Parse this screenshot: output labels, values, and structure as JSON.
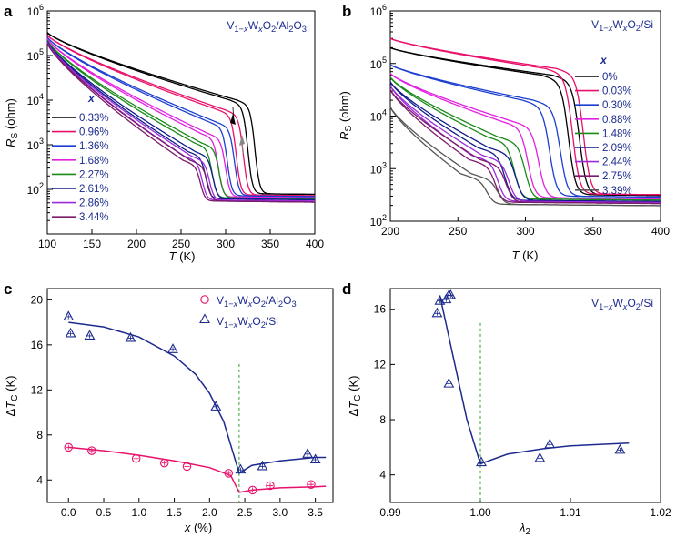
{
  "panels": {
    "a": {
      "letter": "a",
      "title": "V1−xWxO2/Al2O3"
    },
    "b": {
      "letter": "b",
      "title": "V1−xWxO2/Si"
    },
    "c": {
      "letter": "c"
    },
    "d": {
      "letter": "d",
      "title": "V1−xWxO2/Si"
    }
  },
  "chart_data": [
    {
      "id": "a",
      "type": "line",
      "title": "V1−xWxO2/Al2O3",
      "xlabel": "T (K)",
      "ylabel": "RS (ohm)",
      "xlim": [
        100,
        400
      ],
      "ylim": [
        10,
        1000000
      ],
      "yscale": "log",
      "xticks": [
        100,
        150,
        200,
        250,
        300,
        350,
        400
      ],
      "yticks": [
        "10^2",
        "10^3",
        "10^4",
        "10^5",
        "10^6"
      ],
      "legend_title": "x",
      "legend_location": "left-middle",
      "annotations": [
        "arrow down on heating branch near 315 K",
        "arrow up on cooling branch near 335 K"
      ],
      "series": [
        {
          "name": "0.33%",
          "color": "#000000",
          "Tc": 325,
          "start": 330000,
          "knee": 10000,
          "end": 80
        },
        {
          "name": "0.96%",
          "color": "#e8106a",
          "Tc": 312,
          "start": 290000,
          "knee": 6000,
          "end": 75
        },
        {
          "name": "1.36%",
          "color": "#1c3fd0",
          "Tc": 302,
          "start": 260000,
          "knee": 3200,
          "end": 72
        },
        {
          "name": "1.68%",
          "color": "#e21fe0",
          "Tc": 292,
          "start": 240000,
          "knee": 1800,
          "end": 68
        },
        {
          "name": "2.27%",
          "color": "#1a8a1a",
          "Tc": 285,
          "start": 220000,
          "knee": 1100,
          "end": 65
        },
        {
          "name": "2.61%",
          "color": "#101c8a",
          "Tc": 278,
          "start": 210000,
          "knee": 700,
          "end": 62
        },
        {
          "name": "2.86%",
          "color": "#9b2bd9",
          "Tc": 274,
          "start": 200000,
          "knee": 550,
          "end": 58
        },
        {
          "name": "3.44%",
          "color": "#7a1a6a",
          "Tc": 272,
          "start": 190000,
          "knee": 450,
          "end": 55
        }
      ]
    },
    {
      "id": "b",
      "type": "line",
      "title": "V1−xWxO2/Si",
      "xlabel": "T (K)",
      "ylabel": "RS (ohm)",
      "xlim": [
        200,
        400
      ],
      "ylim": [
        100,
        1000000
      ],
      "yscale": "log",
      "xticks": [
        200,
        250,
        300,
        350,
        400
      ],
      "yticks": [
        "10^2",
        "10^3",
        "10^4",
        "10^5",
        "10^6"
      ],
      "legend_title": "x",
      "legend_location": "right",
      "series": [
        {
          "name": "0%",
          "color": "#000000",
          "Tc": 332,
          "start": 200000,
          "knee": 60000,
          "end": 320
        },
        {
          "name": "0.03%",
          "color": "#e8106a",
          "Tc": 335,
          "start": 300000,
          "knee": 80000,
          "end": 330
        },
        {
          "name": "0.30%",
          "color": "#1c3fd0",
          "Tc": 318,
          "start": 95000,
          "knee": 20000,
          "end": 300
        },
        {
          "name": "0.88%",
          "color": "#e21fe0",
          "Tc": 302,
          "start": 65000,
          "knee": 8000,
          "end": 280
        },
        {
          "name": "1.48%",
          "color": "#1a8a1a",
          "Tc": 292,
          "start": 55000,
          "knee": 4000,
          "end": 265
        },
        {
          "name": "2.09%",
          "color": "#101c8a",
          "Tc": 285,
          "start": 45000,
          "knee": 2500,
          "end": 250
        },
        {
          "name": "2.44%",
          "color": "#9b2bd9",
          "Tc": 280,
          "start": 38000,
          "knee": 1800,
          "end": 240
        },
        {
          "name": "2.75%",
          "color": "#7a1a6a",
          "Tc": 278,
          "start": 32000,
          "knee": 1500,
          "end": 230
        },
        {
          "name": "3.39%",
          "color": "#555555",
          "Tc": 272,
          "start": 15000,
          "knee": 800,
          "end": 210
        }
      ]
    },
    {
      "id": "c",
      "type": "scatter",
      "xlabel": "x (%)",
      "ylabel": "ΔTC (K)",
      "xlim": [
        -0.3,
        3.75
      ],
      "ylim": [
        2,
        21
      ],
      "xticks": [
        0.0,
        0.5,
        1.0,
        1.5,
        2.0,
        2.5,
        3.0,
        3.5
      ],
      "yticks": [
        4,
        8,
        12,
        16,
        20
      ],
      "legend_location": "top-right",
      "vline": 2.42,
      "series": [
        {
          "name": "V1−xWxO2/Al2O3",
          "marker": "circle",
          "color": "#e8106a",
          "x": [
            0.0,
            0.33,
            0.96,
            1.36,
            1.68,
            2.27,
            2.61,
            2.86,
            3.44
          ],
          "y": [
            6.9,
            6.6,
            5.9,
            5.5,
            5.2,
            4.6,
            3.1,
            3.5,
            3.6
          ],
          "fit_x": [
            0.0,
            0.5,
            1.0,
            1.5,
            2.0,
            2.3,
            2.42,
            2.6,
            3.0,
            3.5,
            3.65
          ],
          "fit_y": [
            6.9,
            6.6,
            6.2,
            5.7,
            5.1,
            4.4,
            2.9,
            3.1,
            3.3,
            3.4,
            3.45
          ]
        },
        {
          "name": "V1−xWxO2/Si",
          "marker": "triangle",
          "color": "#1c2a8e",
          "x": [
            0.0,
            0.03,
            0.3,
            0.88,
            1.48,
            2.09,
            2.44,
            2.75,
            3.39,
            3.5
          ],
          "y": [
            18.5,
            17.0,
            16.8,
            16.6,
            15.6,
            10.5,
            4.9,
            5.2,
            6.3,
            5.8
          ],
          "fit_x": [
            0.0,
            0.5,
            1.0,
            1.5,
            1.8,
            2.0,
            2.2,
            2.42,
            2.6,
            3.0,
            3.5,
            3.65
          ],
          "fit_y": [
            18.0,
            17.6,
            16.7,
            15.0,
            13.4,
            11.7,
            9.2,
            4.6,
            5.3,
            5.7,
            6.0,
            6.0
          ]
        }
      ]
    },
    {
      "id": "d",
      "type": "scatter",
      "title": "V1−xWxO2/Si",
      "xlabel": "λ2",
      "ylabel": "ΔTC (K)",
      "xlim": [
        0.99,
        1.02
      ],
      "ylim": [
        2,
        17.5
      ],
      "xticks": [
        0.99,
        1.0,
        1.01,
        1.02
      ],
      "yticks": [
        4,
        8,
        12,
        16
      ],
      "vline": 1.0,
      "series": [
        {
          "name": "V1−xWxO2/Si",
          "marker": "triangle",
          "color": "#1c2a8e",
          "x": [
            0.9952,
            0.9955,
            0.9962,
            0.9965,
            0.9967,
            0.9965,
            1.0001,
            1.0066,
            1.0077,
            1.0155
          ],
          "y": [
            15.7,
            16.6,
            16.7,
            17.0,
            17.0,
            10.6,
            4.9,
            5.2,
            6.2,
            5.8
          ],
          "fit_x": [
            0.9955,
            0.997,
            0.9985,
            1.0,
            1.003,
            1.007,
            1.01,
            1.0165
          ],
          "fit_y": [
            17.0,
            12.5,
            8.0,
            4.8,
            5.5,
            5.9,
            6.1,
            6.3
          ]
        }
      ]
    }
  ]
}
